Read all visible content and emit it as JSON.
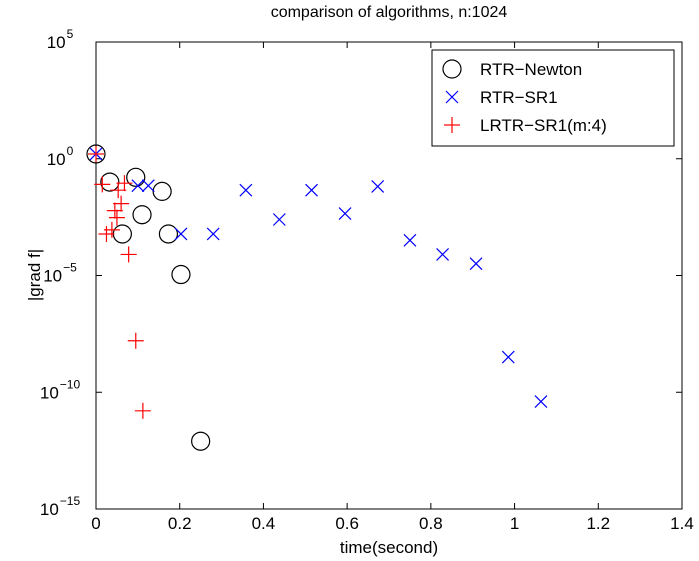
{
  "chart_data": {
    "type": "scatter",
    "title": "comparison of algorithms, n:1024",
    "xlabel": "time(second)",
    "ylabel": "|grad f|",
    "xlim": [
      0,
      1.4
    ],
    "ylim_log10": [
      -15,
      5
    ],
    "yscale": "log",
    "grid": false,
    "legend_position": "top-right",
    "x_ticks": [
      "0",
      "0.2",
      "0.4",
      "0.6",
      "0.8",
      "1",
      "1.2",
      "1.4"
    ],
    "y_ticks": [
      {
        "base": "10",
        "exp": "5",
        "log10": 5
      },
      {
        "base": "10",
        "exp": "0",
        "log10": 0
      },
      {
        "base": "10",
        "exp": "−5",
        "log10": -5
      },
      {
        "base": "10",
        "exp": "−10",
        "log10": -10
      },
      {
        "base": "10",
        "exp": "−15",
        "log10": -15
      }
    ],
    "series": [
      {
        "name": "RTR−Newton",
        "marker": "circle",
        "color": "#000000",
        "points": [
          {
            "x": 0.0,
            "y": 1.6
          },
          {
            "x": 0.033,
            "y": 0.1
          },
          {
            "x": 0.063,
            "y": 0.0006
          },
          {
            "x": 0.095,
            "y": 0.16
          },
          {
            "x": 0.11,
            "y": 0.004
          },
          {
            "x": 0.158,
            "y": 0.04
          },
          {
            "x": 0.173,
            "y": 0.0006
          },
          {
            "x": 0.203,
            "y": 1.1e-05
          },
          {
            "x": 0.25,
            "y": 8e-13
          }
        ]
      },
      {
        "name": "RTR−SR1",
        "marker": "x",
        "color": "#0000ff",
        "points": [
          {
            "x": 0.0,
            "y": 1.6
          },
          {
            "x": 0.1,
            "y": 0.07
          },
          {
            "x": 0.125,
            "y": 0.07
          },
          {
            "x": 0.203,
            "y": 0.0006
          },
          {
            "x": 0.28,
            "y": 0.0006
          },
          {
            "x": 0.358,
            "y": 0.045
          },
          {
            "x": 0.438,
            "y": 0.0025
          },
          {
            "x": 0.515,
            "y": 0.045
          },
          {
            "x": 0.595,
            "y": 0.0045
          },
          {
            "x": 0.673,
            "y": 0.065
          },
          {
            "x": 0.75,
            "y": 0.00032
          },
          {
            "x": 0.828,
            "y": 8e-05
          },
          {
            "x": 0.908,
            "y": 3.2e-05
          },
          {
            "x": 0.985,
            "y": 3.2e-09
          },
          {
            "x": 1.063,
            "y": 4e-11
          }
        ]
      },
      {
        "name": "LRTR−SR1(m:4)",
        "marker": "plus",
        "color": "#ff0000",
        "points": [
          {
            "x": 0.0,
            "y": 1.6
          },
          {
            "x": 0.015,
            "y": 0.08
          },
          {
            "x": 0.025,
            "y": 0.0006
          },
          {
            "x": 0.038,
            "y": 0.0009
          },
          {
            "x": 0.045,
            "y": 0.006
          },
          {
            "x": 0.05,
            "y": 0.003
          },
          {
            "x": 0.053,
            "y": 0.045
          },
          {
            "x": 0.06,
            "y": 0.012
          },
          {
            "x": 0.068,
            "y": 0.09
          },
          {
            "x": 0.078,
            "y": 8e-05
          },
          {
            "x": 0.095,
            "y": 1.6e-08
          },
          {
            "x": 0.112,
            "y": 1.6e-11
          }
        ]
      }
    ]
  }
}
